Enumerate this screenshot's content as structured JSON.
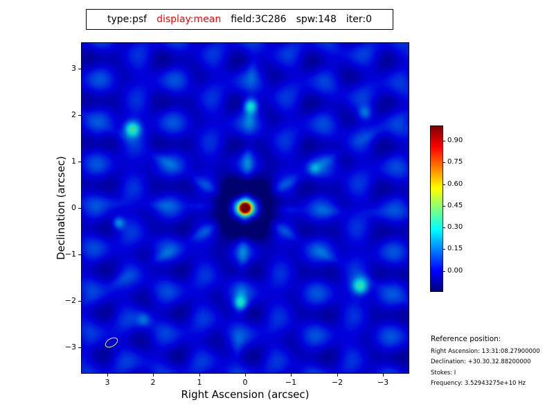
{
  "title_box": {
    "tokens": [
      {
        "text": "type:psf",
        "color": "#000000"
      },
      {
        "text": "display:mean",
        "color": "#ff0000"
      },
      {
        "text": "field:3C286",
        "color": "#000000"
      },
      {
        "text": "spw:148",
        "color": "#000000"
      },
      {
        "text": "iter:0",
        "color": "#000000"
      }
    ]
  },
  "plot": {
    "xlabel": "Right Ascension (arcsec)",
    "ylabel": "Declination (arcsec)"
  },
  "colorbar": {
    "tick_labels": [
      "0.90",
      "0.75",
      "0.60",
      "0.45",
      "0.30",
      "0.15",
      "0.00"
    ]
  },
  "reference": {
    "heading": "Reference position:",
    "lines": [
      "Right Ascension: 13:31:08.27900000",
      "Declination: +30.30.32.88200000",
      "Stokes: I",
      "Frequency: 3.52943275e+10 Hz"
    ]
  },
  "chart_data": {
    "type": "heatmap",
    "title": "type:psf display:mean field:3C286 spw:148 iter:0",
    "xlabel": "Right Ascension (arcsec)",
    "ylabel": "Declination (arcsec)",
    "x_range": [
      3.55,
      -3.55
    ],
    "y_range": [
      -3.55,
      3.55
    ],
    "x_ticks": [
      3,
      2,
      1,
      0,
      -1,
      -2,
      -3
    ],
    "y_ticks": [
      3,
      2,
      1,
      0,
      -1,
      -2,
      -3
    ],
    "value_range": [
      -0.14,
      1.0
    ],
    "colormap": "jet",
    "colorbar_ticks": [
      0.9,
      0.75,
      0.6,
      0.45,
      0.3,
      0.15,
      0.0
    ],
    "peak": {
      "x": 0.0,
      "y": 0.0,
      "value": 1.0
    },
    "arms": [
      {
        "angle_deg": 93,
        "amp": 0.16,
        "width": 0.12,
        "period": 1.0,
        "decay": 3.2,
        "ripple": 0.03,
        "spacing": 0.82
      },
      {
        "angle_deg": 2,
        "amp": 0.1,
        "width": 0.11,
        "period": 0.95,
        "decay": 3.0,
        "ripple": 0.025,
        "spacing": 0.88
      },
      {
        "angle_deg": 30,
        "amp": 0.12,
        "width": 0.11,
        "period": 1.05,
        "decay": 3.4,
        "ripple": 0.03,
        "spacing": 0.8
      },
      {
        "angle_deg": 150,
        "amp": 0.12,
        "width": 0.11,
        "period": 1.05,
        "decay": 3.4,
        "ripple": 0.03,
        "spacing": 0.8
      }
    ],
    "blobs": [
      [
        2.45,
        1.7,
        0.38,
        0.17
      ],
      [
        -0.12,
        2.2,
        0.3,
        0.15
      ],
      [
        -2.5,
        -1.68,
        0.36,
        0.17
      ],
      [
        0.1,
        -2.05,
        0.22,
        0.14
      ],
      [
        2.75,
        -0.32,
        0.22,
        0.13
      ],
      [
        -2.6,
        2.05,
        0.16,
        0.14
      ],
      [
        2.2,
        -2.4,
        0.14,
        0.15
      ],
      [
        -1.5,
        0.85,
        0.14,
        0.13
      ]
    ],
    "negative_bowl": {
      "amp": -0.25,
      "sigma2": 0.5
    },
    "beam_ellipse": {
      "x": 2.9,
      "y": -2.9,
      "major_arcsec": 0.3,
      "minor_arcsec": 0.18,
      "angle_deg": -30
    }
  }
}
